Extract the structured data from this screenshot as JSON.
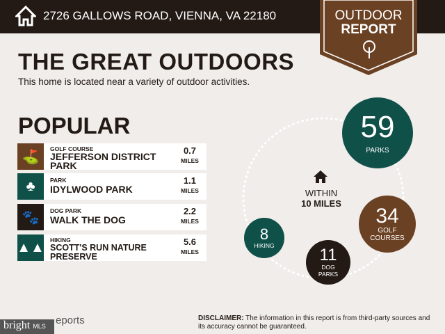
{
  "header": {
    "address": "2726 GALLOWS ROAD, VIENNA, VA 22180",
    "icon": "home-icon"
  },
  "badge": {
    "line1": "OUTDOOR",
    "line2": "REPORT",
    "icon": "tree-icon",
    "color": "#6b4124"
  },
  "title": "THE GREAT OUTDOORS",
  "subtitle": "This home is located near a variety of outdoor activities.",
  "popular": {
    "heading": "POPULAR",
    "items": [
      {
        "category": "GOLF COURSE",
        "name": "JEFFERSON DISTRICT PARK",
        "distance": "0.7",
        "unit": "MILES",
        "icon": "golf-bag-icon",
        "color": "#6b4124"
      },
      {
        "category": "PARK",
        "name": "IDYLWOOD PARK",
        "distance": "1.1",
        "unit": "MILES",
        "icon": "park-icon",
        "color": "#0f5049"
      },
      {
        "category": "DOG PARK",
        "name": "WALK THE DOG",
        "distance": "2.2",
        "unit": "MILES",
        "icon": "paw-icon",
        "color": "#231a15"
      },
      {
        "category": "HIKING",
        "name": "SCOTT'S RUN NATURE PRESERVE",
        "distance": "5.6",
        "unit": "MILES",
        "icon": "pine-trees-icon",
        "color": "#0f5049"
      }
    ]
  },
  "within": {
    "line1": "WITHIN",
    "line2": "10 MILES"
  },
  "counts": [
    {
      "value": "59",
      "label": "PARKS",
      "color": "#0f5049"
    },
    {
      "value": "34",
      "label": "GOLF COURSES",
      "color": "#6b4124"
    },
    {
      "value": "11",
      "label": "DOG PARKS",
      "color": "#231a15"
    },
    {
      "value": "8",
      "label": "HIKING",
      "color": "#0f5049"
    }
  ],
  "footer": {
    "logo": "bright",
    "logo_suffix": "MLS",
    "reports": "eports",
    "disclaimer_label": "DISCLAIMER:",
    "disclaimer": " The information in this report is from third-party sources and its accuracy cannot be guaranteed."
  }
}
